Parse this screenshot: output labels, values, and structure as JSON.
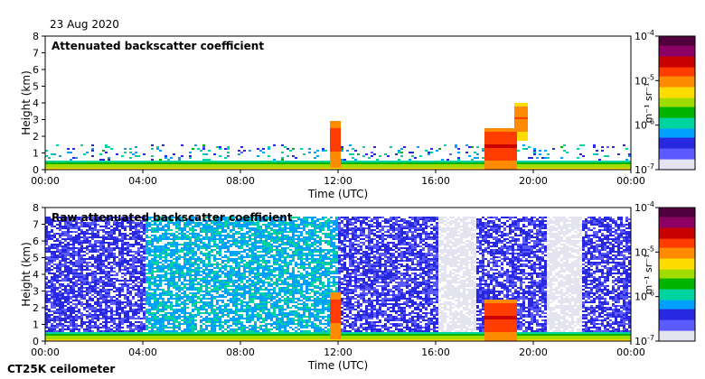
{
  "date_label": "23 Aug 2020",
  "instrument_label": "CT25K ceilometer",
  "colors": {
    "colormap": [
      "#e4e4f0",
      "#5a5aff",
      "#2828e0",
      "#00a0ff",
      "#00d2a0",
      "#00b400",
      "#a0dc00",
      "#ffdc00",
      "#ff8c00",
      "#ff3c00",
      "#c80000",
      "#8c0064",
      "#50003c"
    ],
    "background": "#ffffff",
    "frame": "#000000"
  },
  "chart_data": [
    {
      "type": "heatmap",
      "title": "Attenuated backscatter coefficient",
      "xlabel": "Time (UTC)",
      "ylabel": "Height (km)",
      "x_ticks": [
        "00:00",
        "04:00",
        "08:00",
        "12:00",
        "16:00",
        "20:00",
        "00:00"
      ],
      "y_ticks": [
        "0",
        "1",
        "2",
        "3",
        "4",
        "5",
        "6",
        "7",
        "8"
      ],
      "ylim": [
        0,
        8
      ],
      "colorbar": {
        "scale": "log",
        "unit": "m⁻¹ sr⁻¹",
        "ticks": [
          {
            "base": "10",
            "exp": "-7"
          },
          {
            "base": "10",
            "exp": "-6"
          },
          {
            "base": "10",
            "exp": "-5"
          },
          {
            "base": "10",
            "exp": "-4"
          }
        ]
      },
      "features": [
        {
          "label": "boundary layer aerosol",
          "t_start": 0.0,
          "t_end": 24.0,
          "h_bottom": 0.0,
          "h_top": 0.6,
          "level": 0.65
        },
        {
          "label": "cloud",
          "t_start": 11.6,
          "t_end": 12.0,
          "h_bottom": 0.0,
          "h_top": 3.0,
          "level": 0.75
        },
        {
          "label": "cloud",
          "t_start": 17.9,
          "t_end": 19.3,
          "h_bottom": 0.0,
          "h_top": 2.5,
          "level": 0.78
        },
        {
          "label": "cloud",
          "t_start": 19.2,
          "t_end": 19.7,
          "h_bottom": 1.8,
          "h_top": 4.0,
          "level": 0.7
        }
      ]
    },
    {
      "type": "heatmap",
      "title": "Raw attenuated backscatter coefficient",
      "xlabel": "Time (UTC)",
      "ylabel": "Height (km)",
      "x_ticks": [
        "00:00",
        "04:00",
        "08:00",
        "12:00",
        "16:00",
        "20:00",
        "00:00"
      ],
      "y_ticks": [
        "0",
        "1",
        "2",
        "3",
        "4",
        "5",
        "6",
        "7",
        "8"
      ],
      "ylim": [
        0,
        8
      ],
      "colorbar": {
        "scale": "log",
        "unit": "m⁻¹ sr⁻¹",
        "ticks": [
          {
            "base": "10",
            "exp": "-7"
          },
          {
            "base": "10",
            "exp": "-6"
          },
          {
            "base": "10",
            "exp": "-5"
          },
          {
            "base": "10",
            "exp": "-4"
          }
        ]
      },
      "features": [
        {
          "label": "noise field",
          "t_start": 0.0,
          "t_end": 24.0,
          "h_bottom": 0.0,
          "h_top": 7.5,
          "level": 0.3
        },
        {
          "label": "boundary layer aerosol",
          "t_start": 0.0,
          "t_end": 24.0,
          "h_bottom": 0.0,
          "h_top": 0.6,
          "level": 0.65
        },
        {
          "label": "cloud",
          "t_start": 11.6,
          "t_end": 12.0,
          "h_bottom": 0.0,
          "h_top": 3.0,
          "level": 0.75
        },
        {
          "label": "cloud",
          "t_start": 17.9,
          "t_end": 19.3,
          "h_bottom": 0.0,
          "h_top": 2.5,
          "level": 0.78
        }
      ]
    }
  ]
}
